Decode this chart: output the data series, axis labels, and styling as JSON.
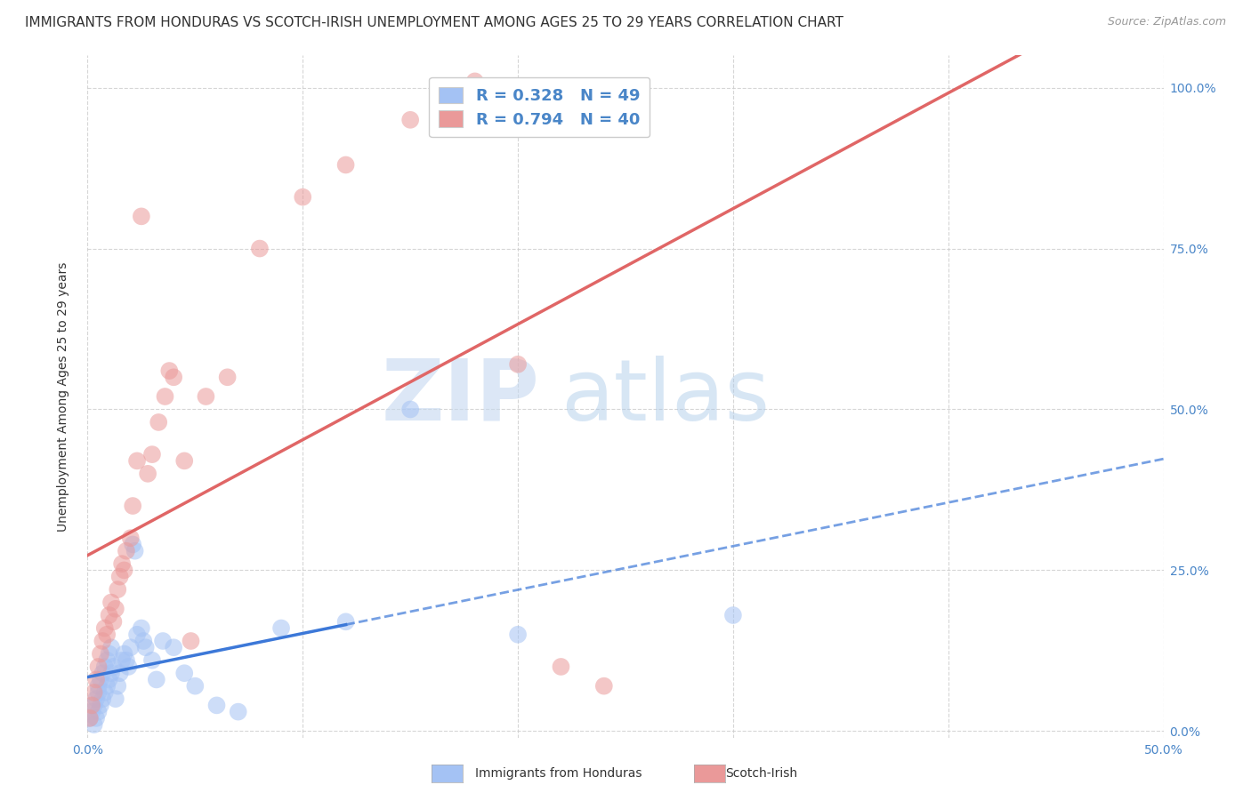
{
  "title": "IMMIGRANTS FROM HONDURAS VS SCOTCH-IRISH UNEMPLOYMENT AMONG AGES 25 TO 29 YEARS CORRELATION CHART",
  "source": "Source: ZipAtlas.com",
  "ylabel": "Unemployment Among Ages 25 to 29 years",
  "xlim": [
    0.0,
    0.5
  ],
  "ylim": [
    -0.01,
    1.05
  ],
  "x_ticks": [
    0.0,
    0.1,
    0.2,
    0.3,
    0.4,
    0.5
  ],
  "x_tick_labels": [
    "0.0%",
    "",
    "",
    "",
    "",
    "50.0%"
  ],
  "y_ticks": [
    0.0,
    0.25,
    0.5,
    0.75,
    1.0
  ],
  "y_tick_labels_left": [
    "",
    "25.0%",
    "50.0%",
    "75.0%",
    "100.0%"
  ],
  "y_tick_labels_right": [
    "0.0%",
    "25.0%",
    "50.0%",
    "75.0%",
    "100.0%"
  ],
  "blue_color": "#a4c2f4",
  "pink_color": "#ea9999",
  "blue_line_color": "#3c78d8",
  "pink_line_color": "#e06666",
  "watermark_zip": "ZIP",
  "watermark_atlas": "atlas",
  "background_color": "#ffffff",
  "grid_color": "#cccccc",
  "title_fontsize": 11,
  "axis_label_fontsize": 10,
  "tick_fontsize": 10,
  "legend_fontsize": 13,
  "source_fontsize": 9,
  "blue_scatter_x": [
    0.001,
    0.002,
    0.003,
    0.003,
    0.004,
    0.004,
    0.005,
    0.005,
    0.005,
    0.006,
    0.006,
    0.007,
    0.007,
    0.008,
    0.008,
    0.009,
    0.009,
    0.01,
    0.01,
    0.011,
    0.011,
    0.012,
    0.013,
    0.014,
    0.015,
    0.016,
    0.017,
    0.018,
    0.019,
    0.02,
    0.021,
    0.022,
    0.023,
    0.025,
    0.026,
    0.027,
    0.03,
    0.032,
    0.035,
    0.04,
    0.045,
    0.05,
    0.06,
    0.07,
    0.09,
    0.12,
    0.15,
    0.2,
    0.3
  ],
  "blue_scatter_y": [
    0.02,
    0.03,
    0.01,
    0.04,
    0.02,
    0.05,
    0.03,
    0.06,
    0.07,
    0.04,
    0.08,
    0.05,
    0.09,
    0.06,
    0.1,
    0.07,
    0.11,
    0.08,
    0.12,
    0.09,
    0.13,
    0.1,
    0.05,
    0.07,
    0.09,
    0.11,
    0.12,
    0.11,
    0.1,
    0.13,
    0.29,
    0.28,
    0.15,
    0.16,
    0.14,
    0.13,
    0.11,
    0.08,
    0.14,
    0.13,
    0.09,
    0.07,
    0.04,
    0.03,
    0.16,
    0.17,
    0.5,
    0.15,
    0.18
  ],
  "pink_scatter_x": [
    0.001,
    0.002,
    0.003,
    0.004,
    0.005,
    0.006,
    0.007,
    0.008,
    0.009,
    0.01,
    0.011,
    0.012,
    0.013,
    0.014,
    0.015,
    0.016,
    0.017,
    0.018,
    0.02,
    0.021,
    0.023,
    0.025,
    0.028,
    0.03,
    0.033,
    0.036,
    0.038,
    0.04,
    0.045,
    0.048,
    0.055,
    0.065,
    0.08,
    0.1,
    0.12,
    0.15,
    0.18,
    0.2,
    0.22,
    0.24
  ],
  "pink_scatter_y": [
    0.02,
    0.04,
    0.06,
    0.08,
    0.1,
    0.12,
    0.14,
    0.16,
    0.15,
    0.18,
    0.2,
    0.17,
    0.19,
    0.22,
    0.24,
    0.26,
    0.25,
    0.28,
    0.3,
    0.35,
    0.42,
    0.8,
    0.4,
    0.43,
    0.48,
    0.52,
    0.56,
    0.55,
    0.42,
    0.14,
    0.52,
    0.55,
    0.75,
    0.83,
    0.88,
    0.95,
    1.01,
    0.57,
    0.1,
    0.07
  ]
}
